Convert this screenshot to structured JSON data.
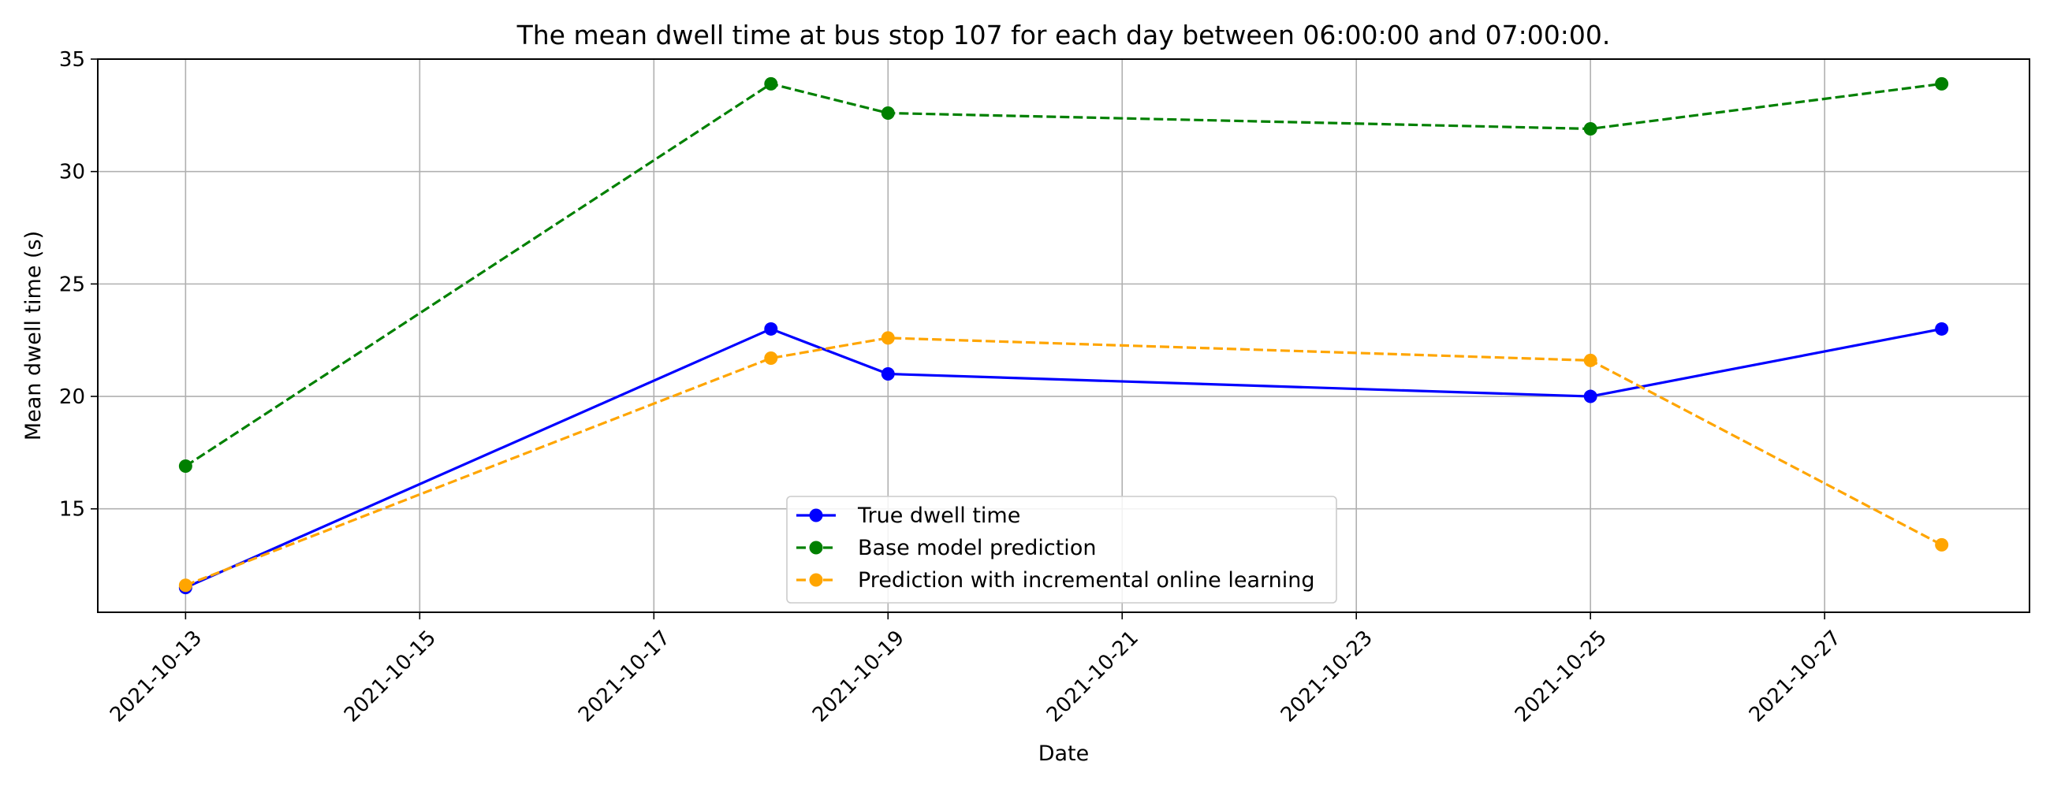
{
  "chart_data": {
    "type": "line",
    "title": "The mean dwell time at bus stop 107 for each day between 06:00:00 and 07:00:00.",
    "xlabel": "Date",
    "ylabel": "Mean dwell time (s)",
    "xlim": [
      "2021-10-12.25",
      "2021-10-28.75"
    ],
    "ylim": [
      10.4,
      35
    ],
    "x_ticks": [
      "2021-10-13",
      "2021-10-15",
      "2021-10-17",
      "2021-10-19",
      "2021-10-21",
      "2021-10-23",
      "2021-10-25",
      "2021-10-27"
    ],
    "y_ticks": [
      15,
      20,
      25,
      30,
      35
    ],
    "grid": true,
    "legend_position": "bottom-center",
    "x": [
      "2021-10-13",
      "2021-10-18",
      "2021-10-19",
      "2021-10-25",
      "2021-10-28"
    ],
    "series": [
      {
        "name": "True dwell time",
        "color": "#0000ff",
        "dashed": false,
        "values": [
          11.5,
          23.0,
          21.0,
          20.0,
          23.0
        ]
      },
      {
        "name": "Base model prediction",
        "color": "#008000",
        "dashed": true,
        "values": [
          16.9,
          33.9,
          32.6,
          31.9,
          33.9
        ]
      },
      {
        "name": "Prediction with incremental online learning",
        "color": "#ffa500",
        "dashed": true,
        "values": [
          11.6,
          21.7,
          22.6,
          21.6,
          13.4
        ]
      }
    ]
  }
}
